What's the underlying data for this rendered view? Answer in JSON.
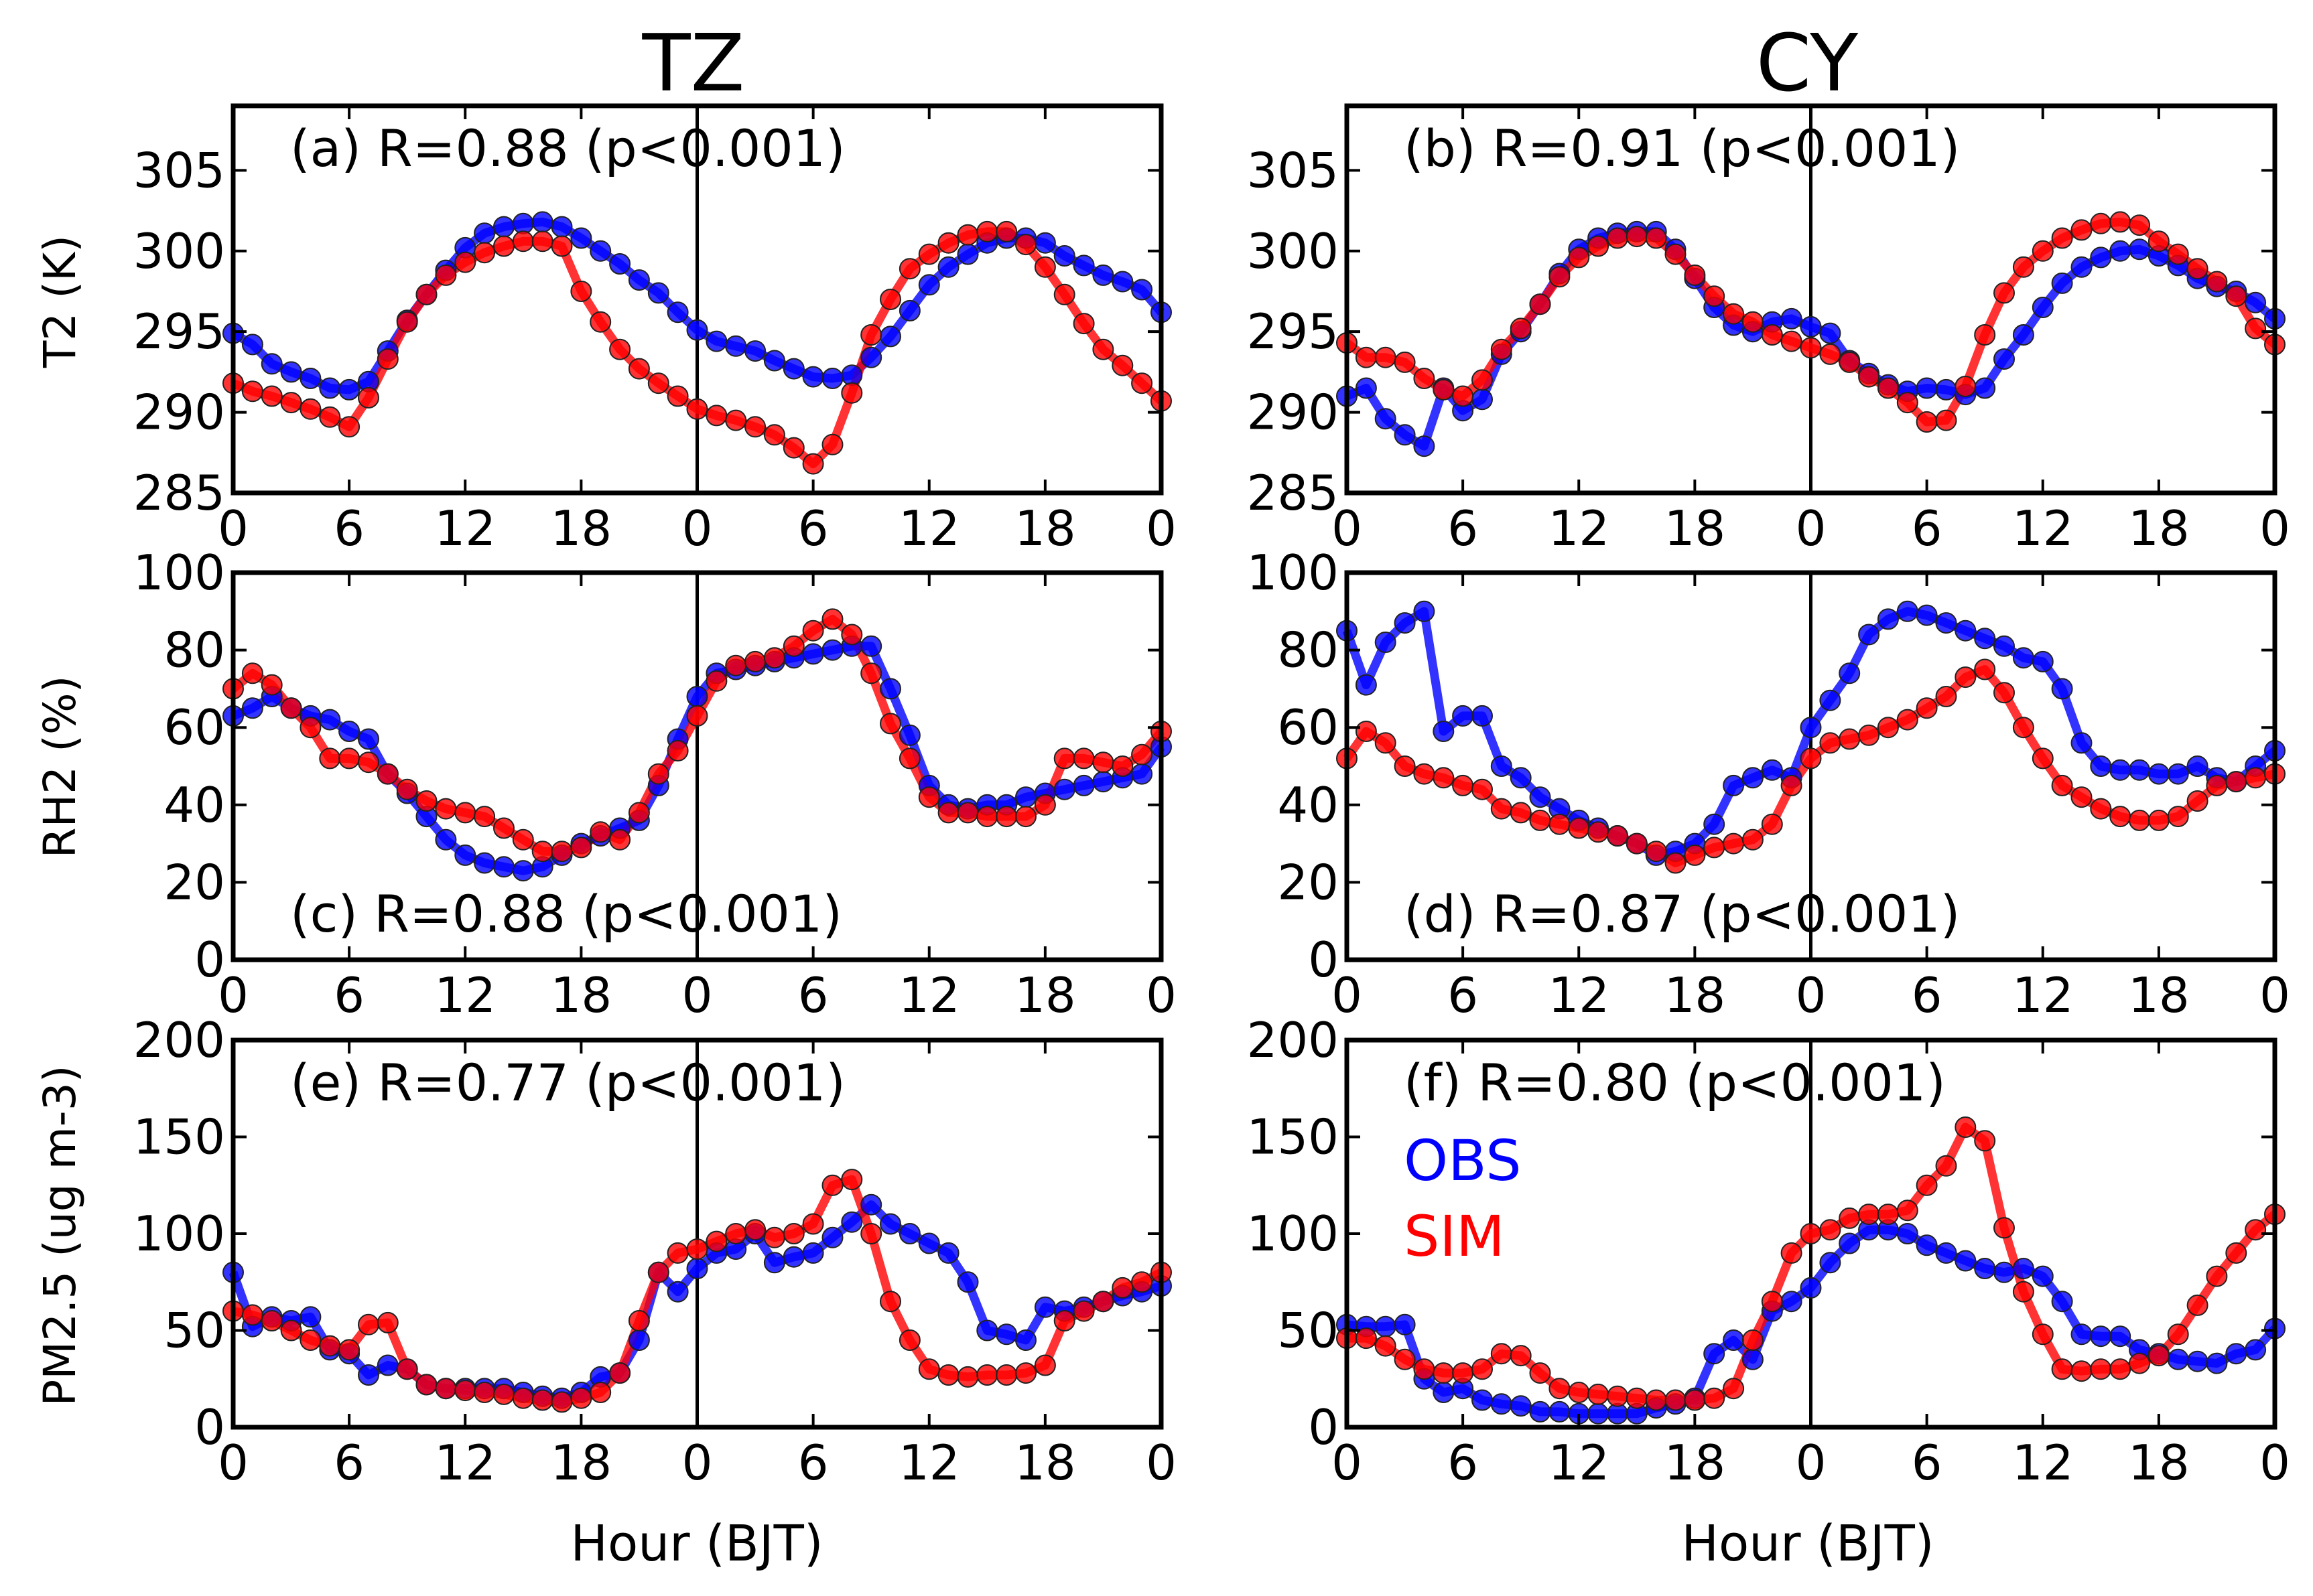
{
  "colors": {
    "obs": "#0000ff",
    "sim": "#ff0000"
  },
  "columns": [
    "TZ",
    "CY"
  ],
  "shared_xlabel": "Hour (BJT)",
  "xticks": [
    "0",
    "6",
    "12",
    "18",
    "0",
    "6",
    "12",
    "18",
    "0"
  ],
  "row_ylabels": [
    "T2 (K)",
    "RH2 (%)",
    "PM2.5 (ug m-3)"
  ],
  "legend": {
    "obs": "OBS",
    "sim": "SIM"
  },
  "chart_data": [
    {
      "type": "line",
      "id": "a",
      "row": 0,
      "col": 0,
      "x_range": [
        0,
        48
      ],
      "annotation": "(a) R=0.88 (p<0.001)",
      "ylim": [
        285,
        309
      ],
      "yticks": [
        "285",
        "290",
        "295",
        "300",
        "305"
      ],
      "ytick_values": [
        285,
        290,
        295,
        300,
        305
      ],
      "series": [
        {
          "name": "OBS",
          "values": [
            294.9,
            294.2,
            293,
            292.5,
            292.1,
            291.5,
            291.4,
            291.9,
            293.8,
            295.7,
            297.3,
            298.8,
            300.2,
            301.1,
            301.5,
            301.7,
            301.8,
            301.5,
            300.8,
            300,
            299.2,
            298.2,
            297.4,
            296.2,
            295.1,
            294.4,
            294.1,
            293.8,
            293.2,
            292.7,
            292.2,
            292.1,
            292.3,
            293.4,
            294.7,
            296.3,
            297.9,
            299,
            299.8,
            300.5,
            300.8,
            300.8,
            300.5,
            299.7,
            299.1,
            298.5,
            298.1,
            297.6,
            296.2
          ]
        },
        {
          "name": "SIM",
          "values": [
            291.8,
            291.3,
            291,
            290.6,
            290.2,
            289.7,
            289.1,
            290.9,
            293.3,
            295.6,
            297.3,
            298.5,
            299.3,
            299.9,
            300.3,
            300.6,
            300.6,
            300.3,
            297.5,
            295.6,
            293.9,
            292.7,
            291.8,
            291,
            290.2,
            289.8,
            289.5,
            289.1,
            288.6,
            287.8,
            286.8,
            288,
            291.2,
            294.8,
            297,
            298.9,
            299.8,
            300.5,
            301,
            301.2,
            301.2,
            300.4,
            299,
            297.3,
            295.5,
            293.9,
            292.9,
            291.8,
            290.7
          ]
        }
      ]
    },
    {
      "type": "line",
      "id": "b",
      "row": 0,
      "col": 1,
      "x_range": [
        0,
        48
      ],
      "annotation": "(b) R=0.91 (p<0.001)",
      "ylim": [
        285,
        309
      ],
      "yticks": [
        "285",
        "290",
        "295",
        "300",
        "305"
      ],
      "ytick_values": [
        285,
        290,
        295,
        300,
        305
      ],
      "series": [
        {
          "name": "OBS",
          "values": [
            291,
            291.5,
            289.6,
            288.6,
            287.9,
            291.5,
            290.1,
            290.8,
            293.6,
            295,
            296.7,
            298.6,
            300.1,
            300.8,
            301.1,
            301.2,
            301.2,
            300.1,
            298.3,
            296.5,
            295.4,
            295,
            295.6,
            295.8,
            295.3,
            294.9,
            293.2,
            292.4,
            291.7,
            291.3,
            291.5,
            291.4,
            291.1,
            291.5,
            293.3,
            294.8,
            296.5,
            298,
            299,
            299.6,
            300,
            300.1,
            299.7,
            299.1,
            298.3,
            297.8,
            297.5,
            296.8,
            295.8
          ]
        },
        {
          "name": "SIM",
          "values": [
            294.3,
            293.4,
            293.4,
            293.1,
            292.1,
            291.4,
            291,
            292,
            293.9,
            295.2,
            296.7,
            298.4,
            299.6,
            300.3,
            300.8,
            300.9,
            300.8,
            299.8,
            298.5,
            297.2,
            296.1,
            295.6,
            294.8,
            294.4,
            294,
            293.6,
            293.1,
            292.2,
            291.5,
            290.6,
            289.4,
            289.5,
            291.6,
            294.8,
            297.4,
            299,
            300,
            300.8,
            301.3,
            301.7,
            301.8,
            301.6,
            300.6,
            299.8,
            298.9,
            298.1,
            297.2,
            295.2,
            294.2
          ]
        }
      ]
    },
    {
      "type": "line",
      "id": "c",
      "row": 1,
      "col": 0,
      "x_range": [
        0,
        48
      ],
      "annotation": "(c) R=0.88 (p<0.001)",
      "ylim": [
        0,
        100
      ],
      "yticks": [
        "0",
        "20",
        "40",
        "60",
        "80",
        "100"
      ],
      "ytick_values": [
        0,
        20,
        40,
        60,
        80,
        100
      ],
      "series": [
        {
          "name": "OBS",
          "values": [
            63,
            65,
            68,
            65,
            63,
            62,
            59,
            57,
            48,
            43,
            37,
            31,
            27,
            25,
            24,
            23,
            24,
            27,
            30,
            32,
            34,
            36,
            45,
            57,
            68,
            74,
            75,
            76,
            77,
            78,
            79,
            80,
            81,
            81,
            70,
            58,
            45,
            40,
            39,
            40,
            40,
            42,
            43,
            44,
            45,
            46,
            47,
            48,
            55
          ]
        },
        {
          "name": "SIM",
          "values": [
            70,
            74,
            71,
            65,
            60,
            52,
            52,
            51,
            48,
            44,
            41,
            39,
            38,
            37,
            34,
            31,
            28,
            28,
            29,
            33,
            31,
            38,
            48,
            54,
            63,
            72,
            76,
            77,
            78,
            81,
            85,
            88,
            84,
            74,
            61,
            52,
            42,
            38,
            38,
            37,
            37,
            37,
            40,
            52,
            52,
            51,
            50,
            53,
            59
          ]
        }
      ]
    },
    {
      "type": "line",
      "id": "d",
      "row": 1,
      "col": 1,
      "x_range": [
        0,
        48
      ],
      "annotation": "(d) R=0.87 (p<0.001)",
      "ylim": [
        0,
        100
      ],
      "yticks": [
        "0",
        "20",
        "40",
        "60",
        "80",
        "100"
      ],
      "ytick_values": [
        0,
        20,
        40,
        60,
        80,
        100
      ],
      "series": [
        {
          "name": "OBS",
          "values": [
            85,
            71,
            82,
            87,
            90,
            59,
            63,
            63,
            50,
            47,
            42,
            39,
            36,
            34,
            32,
            30,
            27,
            28,
            30,
            35,
            45,
            47,
            49,
            47,
            60,
            67,
            74,
            84,
            88,
            90,
            89,
            87,
            85,
            83,
            81,
            78,
            77,
            70,
            56,
            50,
            49,
            49,
            48,
            48,
            50,
            47,
            46,
            50,
            54
          ]
        },
        {
          "name": "SIM",
          "values": [
            52,
            59,
            56,
            50,
            48,
            47,
            45,
            44,
            39,
            38,
            36,
            35,
            34,
            33,
            32,
            30,
            28,
            25,
            27,
            29,
            30,
            31,
            35,
            45,
            52,
            56,
            57,
            58,
            60,
            62,
            65,
            68,
            73,
            75,
            69,
            60,
            52,
            45,
            42,
            39,
            37,
            36,
            36,
            37,
            41,
            45,
            46,
            47,
            48
          ]
        }
      ]
    },
    {
      "type": "line",
      "id": "e",
      "row": 2,
      "col": 0,
      "x_range": [
        0,
        48
      ],
      "annotation": "(e) R=0.77 (p<0.001)",
      "ylim": [
        0,
        200
      ],
      "yticks": [
        "0",
        "50",
        "100",
        "150",
        "200"
      ],
      "ytick_values": [
        0,
        50,
        100,
        150,
        200
      ],
      "series": [
        {
          "name": "OBS",
          "values": [
            80,
            52,
            57,
            55,
            57,
            40,
            38,
            27,
            32,
            30,
            22,
            20,
            20,
            20,
            20,
            18,
            16,
            15,
            18,
            26,
            28,
            45,
            80,
            70,
            82,
            90,
            92,
            100,
            85,
            88,
            90,
            98,
            106,
            115,
            105,
            100,
            95,
            90,
            75,
            50,
            48,
            45,
            62,
            60,
            62,
            65,
            68,
            70,
            73
          ]
        },
        {
          "name": "SIM",
          "values": [
            60,
            58,
            55,
            50,
            45,
            42,
            40,
            53,
            54,
            30,
            22,
            20,
            19,
            18,
            17,
            15,
            14,
            13,
            15,
            18,
            28,
            55,
            80,
            90,
            92,
            96,
            100,
            102,
            98,
            100,
            105,
            125,
            128,
            100,
            65,
            45,
            30,
            27,
            26,
            27,
            27,
            28,
            32,
            55,
            60,
            65,
            72,
            75,
            80
          ]
        }
      ]
    },
    {
      "type": "line",
      "id": "f",
      "row": 2,
      "col": 1,
      "x_range": [
        0,
        48
      ],
      "annotation": "(f) R=0.80 (p<0.001)",
      "ylim": [
        0,
        200
      ],
      "yticks": [
        "0",
        "50",
        "100",
        "150",
        "200"
      ],
      "ytick_values": [
        0,
        50,
        100,
        150,
        200
      ],
      "series": [
        {
          "name": "OBS",
          "values": [
            53,
            52,
            52,
            53,
            25,
            18,
            20,
            14,
            12,
            11,
            8,
            8,
            7,
            7,
            7,
            7,
            10,
            12,
            15,
            38,
            45,
            35,
            60,
            65,
            72,
            85,
            95,
            102,
            102,
            100,
            94,
            90,
            86,
            82,
            80,
            82,
            78,
            65,
            48,
            47,
            47,
            40,
            38,
            35,
            34,
            33,
            38,
            40,
            51
          ]
        },
        {
          "name": "SIM",
          "values": [
            46,
            46,
            42,
            35,
            30,
            28,
            28,
            30,
            38,
            37,
            28,
            20,
            18,
            17,
            16,
            15,
            14,
            14,
            14,
            15,
            20,
            45,
            65,
            90,
            100,
            102,
            108,
            110,
            110,
            112,
            125,
            135,
            155,
            148,
            103,
            70,
            48,
            30,
            29,
            30,
            30,
            33,
            37,
            48,
            63,
            78,
            90,
            102,
            110
          ]
        }
      ]
    }
  ]
}
